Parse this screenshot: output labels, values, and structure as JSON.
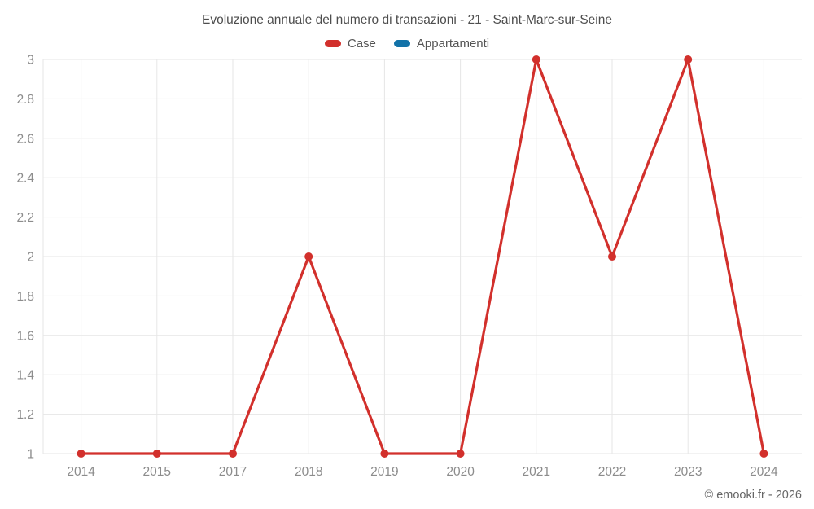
{
  "chart_data": {
    "type": "line",
    "title": "Evoluzione annuale del numero di transazioni - 21 - Saint-Marc-sur-Seine",
    "categories": [
      "2014",
      "2015",
      "2017",
      "2018",
      "2019",
      "2020",
      "2021",
      "2022",
      "2023",
      "2024"
    ],
    "series": [
      {
        "name": "Case",
        "color": "#d2302c",
        "values": [
          1,
          1,
          1,
          2,
          1,
          1,
          3,
          2,
          3,
          1
        ]
      },
      {
        "name": "Appartamenti",
        "color": "#1272a8",
        "values": []
      }
    ],
    "xlabel": "",
    "ylabel": "",
    "ylim": [
      1,
      3
    ],
    "yticks": [
      1,
      1.2,
      1.4,
      1.6,
      1.8,
      2,
      2.2,
      2.4,
      2.6,
      2.8,
      3
    ],
    "ytick_labels": [
      "1",
      "1.2",
      "1.4",
      "1.6",
      "1.8",
      "2",
      "2.2",
      "2.4",
      "2.6",
      "2.8",
      "3"
    ],
    "grid": true,
    "legend_position": "top",
    "colors": {
      "gridline": "#e6e6e6",
      "tick_label": "#8c8c8c",
      "title_text": "#4e4e4e"
    }
  },
  "attribution": "© emooki.fr - 2026"
}
